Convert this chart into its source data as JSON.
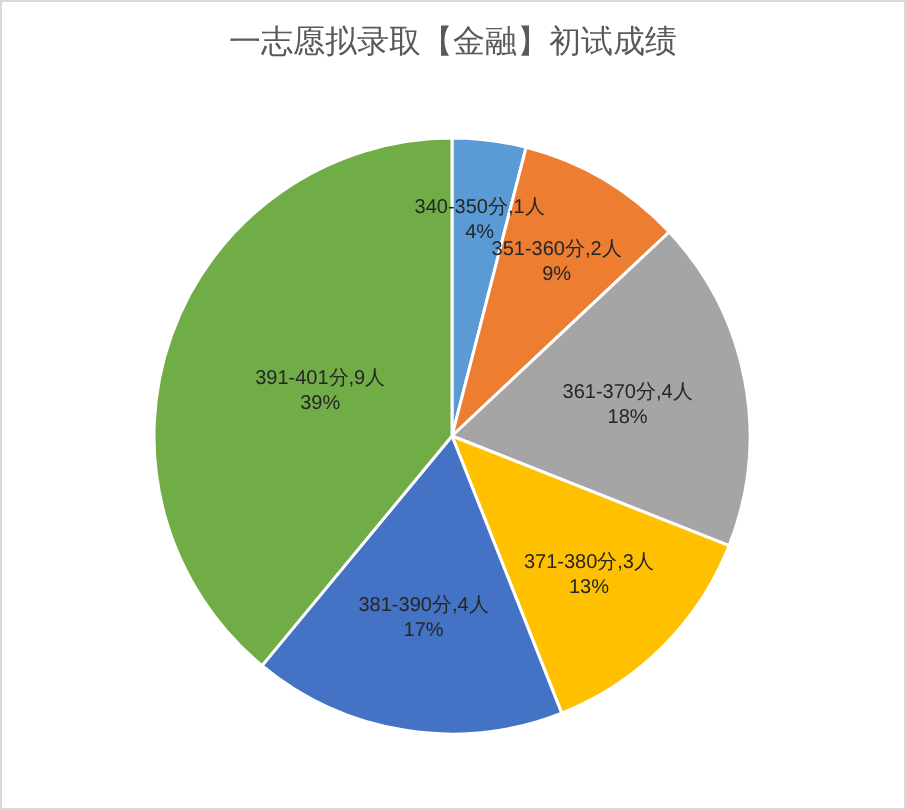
{
  "chart_data": {
    "type": "pie",
    "title": "一志愿拟录取【金融】初试成绩",
    "categories": [
      "340-350分,1人",
      "351-360分,2人",
      "361-370分,4人",
      "371-380分,3人",
      "381-390分,4人",
      "391-401分,9人"
    ],
    "values": [
      4,
      9,
      18,
      13,
      17,
      39
    ],
    "value_labels": [
      "4%",
      "9%",
      "18%",
      "13%",
      "17%",
      "39%"
    ],
    "colors": [
      "#5b9bd5",
      "#ed7d31",
      "#a5a5a5",
      "#ffc000",
      "#4472c4",
      "#70ad47"
    ]
  }
}
